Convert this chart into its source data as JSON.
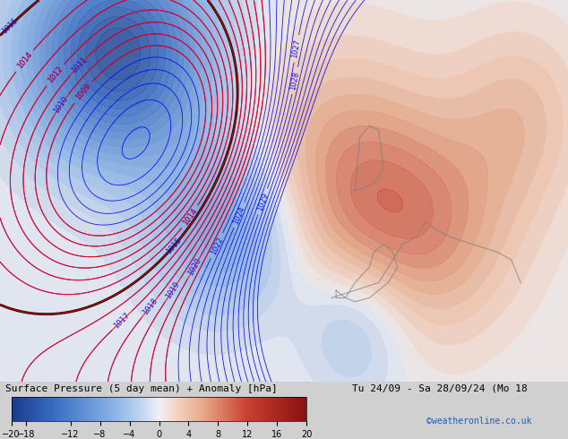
{
  "title_left": "Surface Pressure (5 day mean) + Anomaly [hPa]",
  "title_right": "Tu 24/09 - Sa 28/09/24 (Mo 18",
  "credit": "©weatheronline.co.uk",
  "colorbar_ticks": [
    -20,
    -18,
    -12,
    -8,
    -4,
    0,
    4,
    8,
    12,
    16,
    20
  ],
  "colorbar_label": "",
  "bg_color": "#e8e8e8",
  "fig_width": 6.34,
  "fig_height": 4.9
}
